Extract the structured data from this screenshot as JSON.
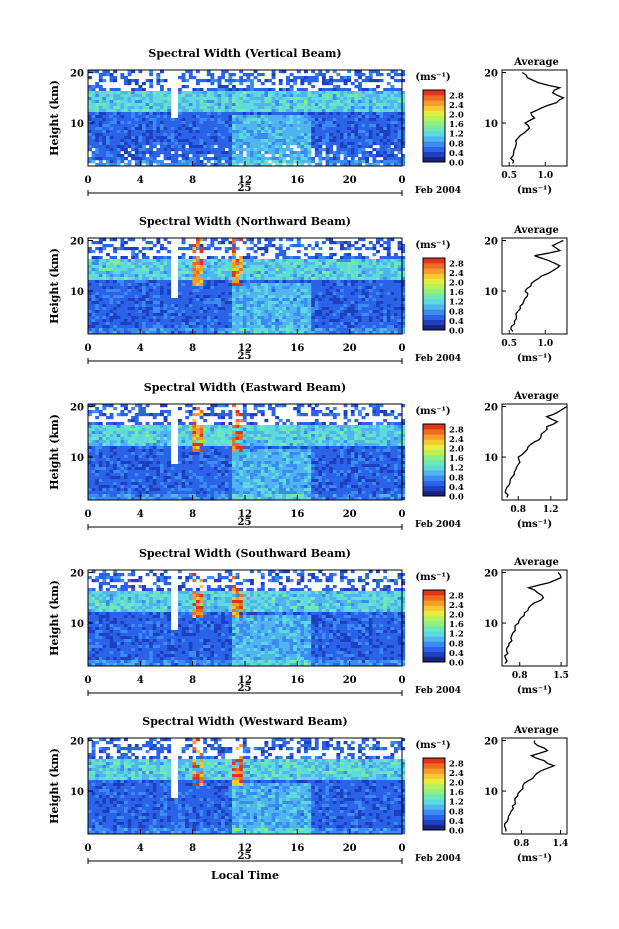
{
  "figure": {
    "xlabel": "Local Time",
    "ylabel": "Height (km)",
    "date_label": "Feb 2004",
    "day_label": "25",
    "unit_label": "(ms⁻¹)",
    "avg_title": "Average",
    "avg_xlabel": "(ms⁻¹)"
  },
  "colors": {
    "scale": [
      "#1a237e",
      "#1e3fbf",
      "#2a63e8",
      "#3a8cf4",
      "#4fb4f0",
      "#5ed9dc",
      "#6ee8b4",
      "#8ef082",
      "#b8f25a",
      "#e6ee3a",
      "#f8c830",
      "#f69a28",
      "#f06a22",
      "#e0341c"
    ]
  },
  "chart_data": [
    {
      "type": "heatmap",
      "title": "Spectral Width (Vertical Beam)",
      "x_ticks": [
        "0",
        "4",
        "8",
        "12",
        "16",
        "20",
        "0"
      ],
      "y_ticks": [
        "20",
        "10"
      ],
      "xlim": [
        0,
        24
      ],
      "ylim": [
        1.5,
        20.5
      ],
      "colorbar_ticks": [
        "2.8",
        "2.4",
        "2.0",
        "1.6",
        "1.2",
        "0.8",
        "0.4",
        "0.0"
      ],
      "colorbar_range": [
        0,
        3.0
      ],
      "profile": {
        "type": "line",
        "x_ticks": [
          "0.5",
          "1.0"
        ],
        "xlim": [
          0.4,
          1.3
        ],
        "y": [
          2,
          3,
          4,
          5,
          6,
          7,
          8,
          9,
          10,
          11,
          12,
          13,
          14,
          15,
          16,
          17,
          18,
          19,
          20
        ],
        "values": [
          0.55,
          0.52,
          0.56,
          0.58,
          0.6,
          0.62,
          0.7,
          0.78,
          0.72,
          0.85,
          0.8,
          0.95,
          1.15,
          1.25,
          1.1,
          1.2,
          0.9,
          0.75,
          0.68
        ]
      }
    },
    {
      "type": "heatmap",
      "title": "Spectral Width (Northward Beam)",
      "x_ticks": [
        "0",
        "4",
        "8",
        "12",
        "16",
        "20",
        "0"
      ],
      "y_ticks": [
        "20",
        "10"
      ],
      "xlim": [
        0,
        24
      ],
      "ylim": [
        1.5,
        20.5
      ],
      "colorbar_ticks": [
        "2.8",
        "2.4",
        "2.0",
        "1.6",
        "1.2",
        "0.8",
        "0.4",
        "0.0"
      ],
      "colorbar_range": [
        0,
        3.0
      ],
      "profile": {
        "type": "line",
        "x_ticks": [
          "0.5",
          "1.0"
        ],
        "xlim": [
          0.4,
          1.3
        ],
        "y": [
          2,
          3,
          4,
          5,
          6,
          7,
          8,
          9,
          10,
          11,
          12,
          13,
          14,
          15,
          16,
          17,
          18,
          19,
          20
        ],
        "values": [
          0.55,
          0.53,
          0.57,
          0.6,
          0.62,
          0.65,
          0.7,
          0.75,
          0.72,
          0.8,
          0.85,
          0.95,
          1.1,
          1.2,
          1.05,
          0.85,
          1.2,
          1.1,
          1.25
        ]
      }
    },
    {
      "type": "heatmap",
      "title": "Spectral Width (Eastward Beam)",
      "x_ticks": [
        "0",
        "4",
        "8",
        "12",
        "16",
        "20",
        "0"
      ],
      "y_ticks": [
        "20",
        "10"
      ],
      "xlim": [
        0,
        24
      ],
      "ylim": [
        1.5,
        20.5
      ],
      "colorbar_ticks": [
        "2.8",
        "2.4",
        "2.0",
        "1.6",
        "1.2",
        "0.8",
        "0.4",
        "0.0"
      ],
      "colorbar_range": [
        0,
        3.0
      ],
      "profile": {
        "type": "line",
        "x_ticks": [
          "0.8",
          "1.2"
        ],
        "xlim": [
          0.6,
          1.4
        ],
        "y": [
          2,
          3,
          4,
          5,
          6,
          7,
          8,
          9,
          10,
          11,
          12,
          13,
          14,
          15,
          16,
          17,
          18,
          19,
          20
        ],
        "values": [
          0.66,
          0.64,
          0.66,
          0.7,
          0.72,
          0.75,
          0.78,
          0.82,
          0.8,
          0.88,
          0.92,
          1.0,
          1.08,
          1.12,
          1.15,
          1.28,
          1.15,
          1.3,
          1.4
        ]
      }
    },
    {
      "type": "heatmap",
      "title": "Spectral Width (Southward Beam)",
      "x_ticks": [
        "0",
        "4",
        "8",
        "12",
        "16",
        "20",
        "0"
      ],
      "y_ticks": [
        "20",
        "10"
      ],
      "xlim": [
        0,
        24
      ],
      "ylim": [
        1.5,
        20.5
      ],
      "colorbar_ticks": [
        "2.8",
        "2.4",
        "2.0",
        "1.6",
        "1.2",
        "0.8",
        "0.4",
        "0.0"
      ],
      "colorbar_range": [
        0,
        3.0
      ],
      "profile": {
        "type": "line",
        "x_ticks": [
          "0.8",
          "1.5"
        ],
        "xlim": [
          0.5,
          1.6
        ],
        "y": [
          2,
          3,
          4,
          5,
          6,
          7,
          8,
          9,
          10,
          11,
          12,
          13,
          14,
          15,
          16,
          17,
          18,
          19,
          20
        ],
        "values": [
          0.55,
          0.56,
          0.6,
          0.58,
          0.62,
          0.65,
          0.68,
          0.72,
          0.78,
          0.82,
          0.88,
          0.95,
          1.05,
          1.2,
          1.1,
          0.95,
          1.3,
          1.5,
          1.45
        ]
      }
    },
    {
      "type": "heatmap",
      "title": "Spectral Width (Westward Beam)",
      "x_ticks": [
        "0",
        "4",
        "8",
        "12",
        "16",
        "20",
        "0"
      ],
      "y_ticks": [
        "20",
        "10"
      ],
      "xlim": [
        0,
        24
      ],
      "ylim": [
        1.5,
        20.5
      ],
      "colorbar_ticks": [
        "2.8",
        "2.4",
        "2.0",
        "1.6",
        "1.2",
        "0.8",
        "0.4",
        "0.0"
      ],
      "colorbar_range": [
        0,
        3.0
      ],
      "profile": {
        "type": "line",
        "x_ticks": [
          "0.8",
          "1.4"
        ],
        "xlim": [
          0.5,
          1.5
        ],
        "y": [
          2,
          3,
          4,
          5,
          6,
          7,
          8,
          9,
          10,
          11,
          12,
          13,
          14,
          15,
          16,
          17,
          18,
          19,
          20
        ],
        "values": [
          0.56,
          0.54,
          0.58,
          0.6,
          0.64,
          0.66,
          0.7,
          0.74,
          0.78,
          0.82,
          0.9,
          1.0,
          1.1,
          1.3,
          1.15,
          0.95,
          1.2,
          1.05,
          1.0
        ]
      }
    }
  ]
}
